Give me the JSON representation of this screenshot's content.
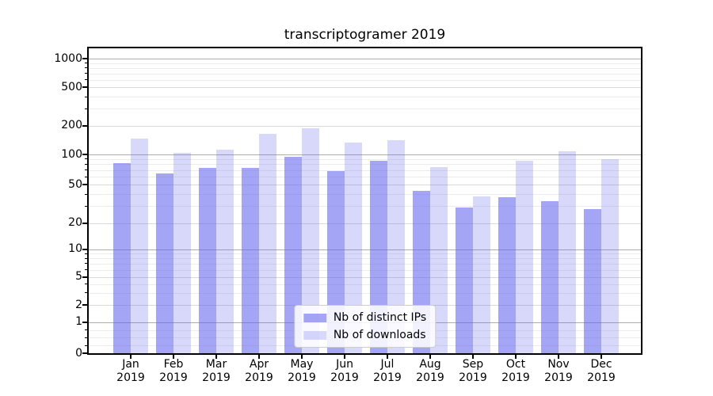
{
  "chart_data": {
    "type": "bar",
    "title": "transcriptogramer 2019",
    "categories": [
      "Jan",
      "Feb",
      "Mar",
      "Apr",
      "May",
      "Jun",
      "Jul",
      "Aug",
      "Sep",
      "Oct",
      "Nov",
      "Dec"
    ],
    "x_second_line": "2019",
    "series": [
      {
        "name": "Nb of distinct IPs",
        "color": "rgba(100,100,240,0.58)",
        "values": [
          82,
          65,
          74,
          74,
          94,
          68,
          87,
          43,
          29,
          37,
          34,
          28
        ]
      },
      {
        "name": "Nb of downloads",
        "color": "rgba(100,100,240,0.25)",
        "values": [
          147,
          103,
          112,
          164,
          189,
          133,
          140,
          75,
          38,
          87,
          109,
          89
        ]
      }
    ],
    "yticks": [
      0,
      1,
      2,
      5,
      10,
      20,
      50,
      100,
      200,
      500,
      1000
    ],
    "ylim": [
      0,
      1290
    ],
    "xlabel": "",
    "ylabel": "",
    "grid": true,
    "legend_position": "lower center",
    "yscale": {
      "type": "symlog-like",
      "anchors": [
        [
          0,
          0
        ],
        [
          1,
          0.1013
        ],
        [
          2,
          0.1584
        ],
        [
          5,
          0.2494
        ],
        [
          10,
          0.3403
        ],
        [
          20,
          0.4268
        ],
        [
          50,
          0.5525
        ],
        [
          100,
          0.6519
        ],
        [
          200,
          0.7462
        ],
        [
          500,
          0.8719
        ],
        [
          1000,
          0.9655
        ]
      ],
      "minor_gridlines": [
        0.25,
        0.5,
        0.75,
        3,
        4,
        6,
        7,
        8,
        9,
        30,
        40,
        60,
        70,
        80,
        90,
        300,
        400,
        600,
        700,
        800,
        900
      ]
    },
    "colors": {
      "bar_base": "#6464f0",
      "spine": "#000000",
      "grid_major": "#adadad",
      "grid_labeled": "#d9d9d9",
      "grid_minor": "#ececec"
    }
  }
}
